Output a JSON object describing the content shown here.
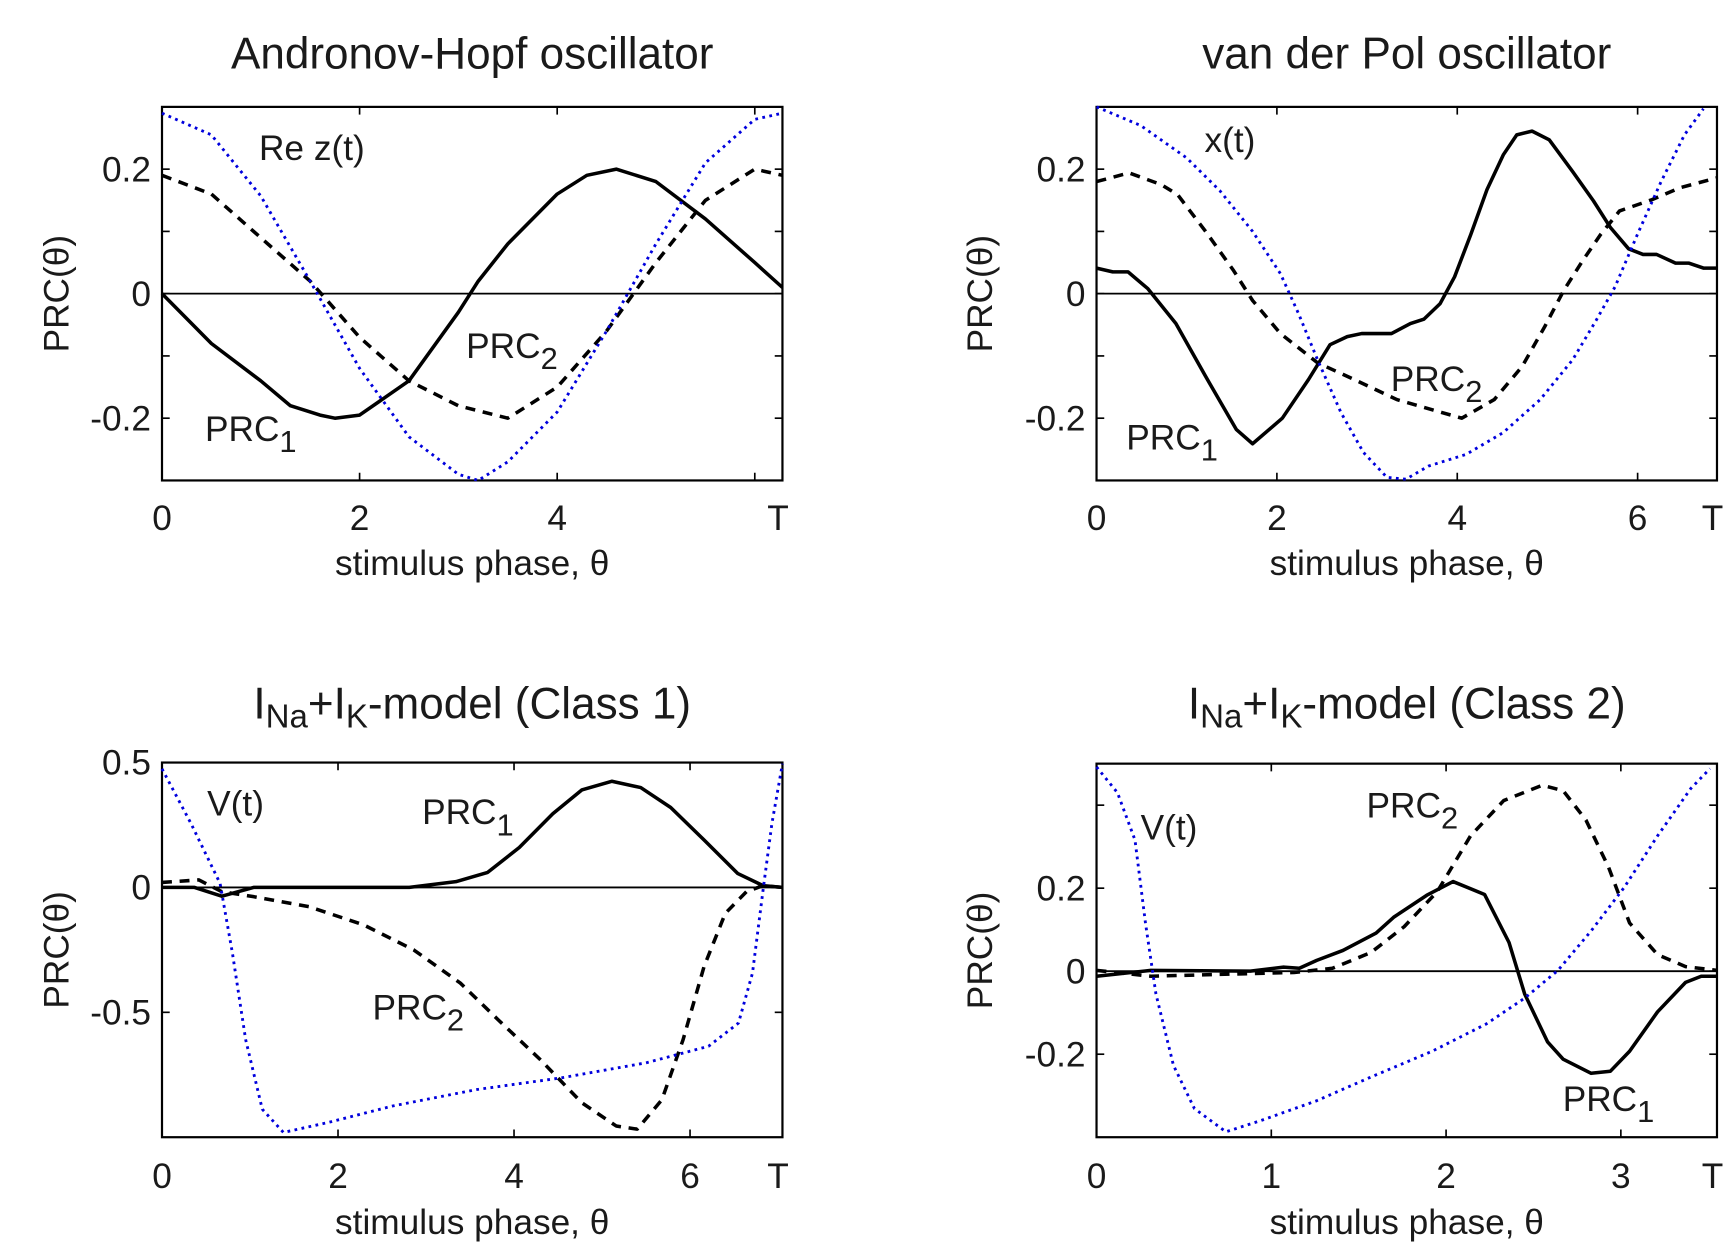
{
  "chart_data": [
    {
      "type": "line",
      "title": "Andronov-Hopf oscillator",
      "title_parts": [
        {
          "text": "Andronov-Hopf oscillator"
        }
      ],
      "xlabel": "stimulus phase, θ",
      "ylabel": "PRC(θ)",
      "xlim": [
        0,
        6.28
      ],
      "ylim": [
        -0.3,
        0.3
      ],
      "xticks": [
        0,
        2,
        4,
        6
      ],
      "xtick_labels": [
        {
          "value": 0,
          "label": "0"
        },
        {
          "value": 2,
          "label": "2"
        },
        {
          "value": 4,
          "label": "4"
        },
        {
          "value": 6.28,
          "label": "T"
        }
      ],
      "yticks": [
        -0.2,
        -0.1,
        0,
        0.1,
        0.2
      ],
      "ytick_labels": [
        {
          "value": 0.2,
          "label": "0.2"
        },
        {
          "value": 0,
          "label": "0"
        },
        {
          "value": -0.2,
          "label": "-0.2"
        }
      ],
      "zero_line": true,
      "series": [
        {
          "name": "PRC1",
          "label": "PRC",
          "sub": "1",
          "style": "solid",
          "color": "#000000",
          "x": [
            0,
            0.5,
            1,
            1.3,
            1.6,
            1.75,
            2.0,
            2.5,
            3.0,
            3.2,
            3.5,
            4.0,
            4.3,
            4.6,
            5.0,
            5.5,
            6.0,
            6.28
          ],
          "y": [
            0,
            -0.08,
            -0.14,
            -0.18,
            -0.195,
            -0.2,
            -0.195,
            -0.14,
            -0.03,
            0.02,
            0.08,
            0.16,
            0.19,
            0.2,
            0.18,
            0.12,
            0.05,
            0.01
          ]
        },
        {
          "name": "PRC2",
          "label": "PRC",
          "sub": "2",
          "style": "dashed",
          "color": "#000000",
          "x": [
            0,
            0.5,
            1,
            1.5,
            2,
            2.5,
            3,
            3.5,
            4,
            4.5,
            5,
            5.5,
            6,
            6.28
          ],
          "y": [
            0.19,
            0.16,
            0.09,
            0.02,
            -0.07,
            -0.14,
            -0.18,
            -0.2,
            -0.15,
            -0.06,
            0.05,
            0.15,
            0.2,
            0.19
          ]
        },
        {
          "name": "Re z(t)",
          "label": "Re z(t)",
          "style": "dotted",
          "color": "#0000dd",
          "x": [
            0,
            0.5,
            1,
            1.5,
            2,
            2.5,
            3,
            3.2,
            3.5,
            4,
            4.5,
            5,
            5.5,
            6,
            6.28
          ],
          "y": [
            0.29,
            0.255,
            0.157,
            0.02,
            -0.12,
            -0.23,
            -0.29,
            -0.3,
            -0.27,
            -0.19,
            -0.06,
            0.08,
            0.21,
            0.28,
            0.29
          ]
        }
      ]
    },
    {
      "type": "line",
      "title": "van der Pol oscillator",
      "title_parts": [
        {
          "text": "van der Pol oscillator"
        }
      ],
      "xlabel": "stimulus phase, θ",
      "ylabel": "PRC(θ)",
      "xlim": [
        0,
        6.88
      ],
      "ylim": [
        -0.3,
        0.3
      ],
      "xticks": [
        0,
        2,
        4,
        6
      ],
      "xtick_labels": [
        {
          "value": 0,
          "label": "0"
        },
        {
          "value": 2,
          "label": "2"
        },
        {
          "value": 4,
          "label": "4"
        },
        {
          "value": 6,
          "label": "6"
        },
        {
          "value": 6.88,
          "label": "T"
        }
      ],
      "yticks": [
        -0.2,
        -0.1,
        0,
        0.1,
        0.2
      ],
      "ytick_labels": [
        {
          "value": 0.2,
          "label": "0.2"
        },
        {
          "value": 0,
          "label": "0"
        },
        {
          "value": -0.2,
          "label": "-0.2"
        }
      ],
      "zero_line": true,
      "series": [
        {
          "name": "PRC1",
          "label": "PRC",
          "sub": "1",
          "style": "solid",
          "color": "#000000",
          "x": [
            0,
            0.18,
            0.35,
            0.57,
            0.88,
            1.21,
            1.55,
            1.73,
            2.06,
            2.35,
            2.59,
            2.78,
            2.94,
            3.27,
            3.48,
            3.63,
            3.81,
            3.97,
            4.15,
            4.33,
            4.51,
            4.66,
            4.83,
            5.02,
            5.28,
            5.51,
            5.7,
            5.9,
            6.06,
            6.21,
            6.42,
            6.57,
            6.73,
            6.88
          ],
          "y": [
            0.041,
            0.035,
            0.035,
            0.008,
            -0.048,
            -0.133,
            -0.218,
            -0.241,
            -0.2,
            -0.138,
            -0.082,
            -0.069,
            -0.064,
            -0.064,
            -0.048,
            -0.041,
            -0.016,
            0.027,
            0.095,
            0.167,
            0.223,
            0.255,
            0.261,
            0.247,
            0.196,
            0.149,
            0.106,
            0.072,
            0.063,
            0.063,
            0.049,
            0.049,
            0.041,
            0.041
          ]
        },
        {
          "name": "PRC2",
          "label": "PRC",
          "sub": "2",
          "style": "dashed",
          "color": "#000000",
          "x": [
            0,
            0.36,
            0.72,
            0.9,
            1.21,
            1.52,
            1.73,
            2.04,
            2.45,
            2.86,
            3.33,
            4.05,
            4.41,
            4.72,
            4.97,
            5.18,
            5.39,
            5.59,
            5.8,
            6.16,
            6.47,
            6.88
          ],
          "y": [
            0.18,
            0.194,
            0.175,
            0.159,
            0.1,
            0.037,
            -0.011,
            -0.064,
            -0.111,
            -0.138,
            -0.17,
            -0.2,
            -0.17,
            -0.117,
            -0.053,
            0.005,
            0.053,
            0.095,
            0.133,
            0.151,
            0.17,
            0.186
          ]
        },
        {
          "name": "x(t)",
          "label": "x(t)",
          "style": "dotted",
          "color": "#0000dd",
          "x": [
            0,
            0.49,
            1.0,
            1.37,
            1.73,
            2.04,
            2.24,
            2.45,
            2.71,
            2.96,
            3.22,
            3.43,
            3.68,
            4.1,
            4.51,
            4.92,
            5.28,
            5.54,
            5.75,
            6.0,
            6.26,
            6.52,
            6.73
          ],
          "y": [
            0.3,
            0.27,
            0.218,
            0.165,
            0.1,
            0.032,
            -0.032,
            -0.106,
            -0.191,
            -0.255,
            -0.295,
            -0.298,
            -0.277,
            -0.258,
            -0.223,
            -0.17,
            -0.106,
            -0.043,
            0.011,
            0.096,
            0.18,
            0.255,
            0.297
          ]
        }
      ]
    },
    {
      "type": "line",
      "title": "INa+IK-model (Class 1)",
      "title_parts": [
        {
          "text": "I"
        },
        {
          "text": "Na",
          "sub": true
        },
        {
          "text": "+I"
        },
        {
          "text": "K",
          "sub": true
        },
        {
          "text": "-model (Class 1)"
        }
      ],
      "xlabel": "stimulus phase, θ",
      "ylabel": "PRC(θ)",
      "xlim": [
        0,
        7.05
      ],
      "ylim": [
        -1.0,
        0.5
      ],
      "xticks": [
        0,
        2,
        4,
        6
      ],
      "xtick_labels": [
        {
          "value": 0,
          "label": "0"
        },
        {
          "value": 2,
          "label": "2"
        },
        {
          "value": 4,
          "label": "4"
        },
        {
          "value": 6,
          "label": "6"
        },
        {
          "value": 7.05,
          "label": "T"
        }
      ],
      "yticks": [
        -0.5,
        0,
        0.5
      ],
      "ytick_labels": [
        {
          "value": 0.5,
          "label": "0.5"
        },
        {
          "value": 0,
          "label": "0"
        },
        {
          "value": -0.5,
          "label": "-0.5"
        }
      ],
      "zero_line": true,
      "series": [
        {
          "name": "PRC1",
          "label": "PRC",
          "sub": "1",
          "style": "solid",
          "color": "#000000",
          "x": [
            0,
            0.37,
            0.68,
            1.04,
            2.81,
            3.34,
            3.7,
            4.06,
            4.44,
            4.77,
            5.11,
            5.44,
            5.78,
            6.16,
            6.54,
            6.83,
            7.05
          ],
          "y": [
            0,
            0,
            -0.035,
            0,
            0,
            0.023,
            0.06,
            0.16,
            0.295,
            0.39,
            0.425,
            0.4,
            0.32,
            0.19,
            0.056,
            0.007,
            0
          ]
        },
        {
          "name": "PRC2",
          "label": "PRC",
          "sub": "2",
          "style": "dashed",
          "color": "#000000",
          "x": [
            0,
            0.42,
            0.68,
            1.04,
            1.67,
            2.29,
            2.86,
            3.39,
            3.82,
            4.3,
            4.77,
            5.16,
            5.4,
            5.68,
            5.92,
            6.16,
            6.4,
            6.64,
            6.83,
            7.05
          ],
          "y": [
            0.02,
            0.03,
            -0.017,
            -0.037,
            -0.077,
            -0.15,
            -0.25,
            -0.383,
            -0.53,
            -0.69,
            -0.862,
            -0.955,
            -0.968,
            -0.85,
            -0.61,
            -0.316,
            -0.104,
            -0.017,
            0.007,
            0
          ]
        },
        {
          "name": "V(t)",
          "label": "V(t)",
          "style": "dotted",
          "color": "#0000dd",
          "x": [
            0,
            0.33,
            0.66,
            0.8,
            0.95,
            1.14,
            1.38,
            1.9,
            2.62,
            3.58,
            4.54,
            5.5,
            6.21,
            6.55,
            6.71,
            6.83,
            6.93,
            7.05
          ],
          "y": [
            0.475,
            0.255,
            0.016,
            -0.263,
            -0.609,
            -0.888,
            -0.981,
            -0.94,
            -0.875,
            -0.809,
            -0.762,
            -0.702,
            -0.636,
            -0.543,
            -0.343,
            -0.011,
            0.255,
            0.495
          ]
        }
      ]
    },
    {
      "type": "line",
      "title": "INa+IK-model (Class 2)",
      "title_parts": [
        {
          "text": "I"
        },
        {
          "text": "Na",
          "sub": true
        },
        {
          "text": "+I"
        },
        {
          "text": "K",
          "sub": true
        },
        {
          "text": "-model (Class 2)"
        }
      ],
      "xlabel": "stimulus phase, θ",
      "ylabel": "PRC(θ)",
      "xlim": [
        0,
        3.55
      ],
      "ylim": [
        -0.4,
        0.5
      ],
      "xticks": [
        0,
        1,
        2,
        3
      ],
      "xtick_labels": [
        {
          "value": 0,
          "label": "0"
        },
        {
          "value": 1,
          "label": "1"
        },
        {
          "value": 2,
          "label": "2"
        },
        {
          "value": 3,
          "label": "3"
        },
        {
          "value": 3.55,
          "label": "T"
        }
      ],
      "yticks": [
        -0.2,
        0,
        0.2,
        0.4
      ],
      "ytick_labels": [
        {
          "value": 0.2,
          "label": "0.2"
        },
        {
          "value": 0,
          "label": "0"
        },
        {
          "value": -0.2,
          "label": "-0.2"
        }
      ],
      "zero_line": true,
      "series": [
        {
          "name": "PRC1",
          "label": "PRC",
          "sub": "1",
          "style": "solid",
          "color": "#000000",
          "x": [
            0,
            0.31,
            0.88,
            1.07,
            1.16,
            1.26,
            1.41,
            1.6,
            1.7,
            1.89,
            2.04,
            2.22,
            2.36,
            2.45,
            2.58,
            2.67,
            2.83,
            2.94,
            3.05,
            3.21,
            3.37,
            3.46,
            3.55
          ],
          "y": [
            -0.012,
            0.002,
            0,
            0.01,
            0.007,
            0.026,
            0.05,
            0.092,
            0.13,
            0.183,
            0.216,
            0.185,
            0.069,
            -0.055,
            -0.17,
            -0.212,
            -0.246,
            -0.241,
            -0.193,
            -0.098,
            -0.027,
            -0.012,
            -0.012
          ]
        },
        {
          "name": "PRC2",
          "label": "PRC",
          "sub": "2",
          "style": "dashed",
          "color": "#000000",
          "x": [
            0,
            0.31,
            1.13,
            1.35,
            1.57,
            1.76,
            1.95,
            2.14,
            2.33,
            2.55,
            2.67,
            2.8,
            2.93,
            3.05,
            3.21,
            3.37,
            3.55
          ],
          "y": [
            0.002,
            -0.012,
            -0.003,
            0.007,
            0.045,
            0.107,
            0.192,
            0.326,
            0.411,
            0.448,
            0.435,
            0.364,
            0.25,
            0.116,
            0.04,
            0.011,
            0.002
          ]
        },
        {
          "name": "V(t)",
          "label": "V(t)",
          "style": "dotted",
          "color": "#0000dd",
          "x": [
            0,
            0.12,
            0.22,
            0.28,
            0.34,
            0.44,
            0.56,
            0.74,
            0.94,
            1.26,
            1.57,
            1.92,
            2.23,
            2.45,
            2.64,
            2.83,
            3.02,
            3.21,
            3.4,
            3.51
          ],
          "y": [
            0.492,
            0.43,
            0.316,
            0.116,
            -0.055,
            -0.227,
            -0.331,
            -0.387,
            -0.36,
            -0.312,
            -0.255,
            -0.193,
            -0.127,
            -0.065,
            0.002,
            0.097,
            0.202,
            0.326,
            0.44,
            0.488
          ]
        }
      ]
    }
  ]
}
